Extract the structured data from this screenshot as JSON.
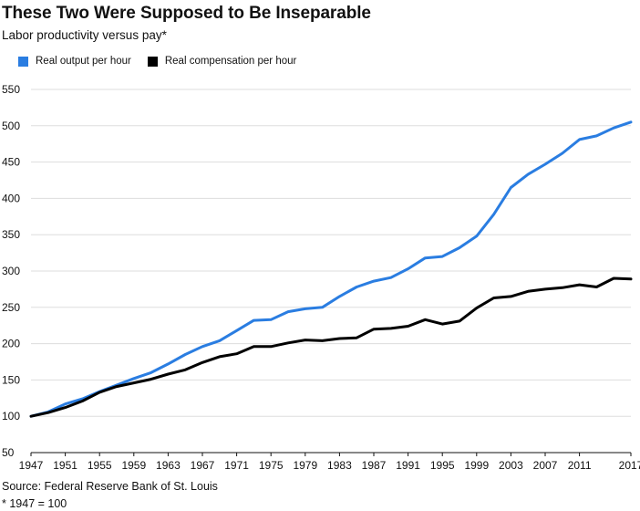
{
  "title": "These Two Were Supposed to Be Inseparable",
  "subtitle": "Labor productivity versus pay*",
  "source": "Source: Federal Reserve Bank of St. Louis",
  "footnote": "* 1947 = 100",
  "chart_data": {
    "type": "line",
    "title": "These Two Were Supposed to Be Inseparable",
    "subtitle": "Labor productivity versus pay*",
    "xlabel": "",
    "ylabel": "",
    "xlim": [
      1947,
      2017
    ],
    "ylim": [
      50,
      550
    ],
    "grid": true,
    "legend_position": "top-left",
    "x_ticks": [
      "1947",
      "1951",
      "1955",
      "1959",
      "1963",
      "1967",
      "1971",
      "1975",
      "1979",
      "1983",
      "1987",
      "1991",
      "1995",
      "1999",
      "2003",
      "2007",
      "2011",
      "2017"
    ],
    "y_ticks": [
      50,
      100,
      150,
      200,
      250,
      300,
      350,
      400,
      450,
      500,
      550
    ],
    "x": [
      1947,
      1949,
      1951,
      1953,
      1955,
      1957,
      1959,
      1961,
      1963,
      1965,
      1967,
      1969,
      1971,
      1973,
      1975,
      1977,
      1979,
      1981,
      1983,
      1985,
      1987,
      1989,
      1991,
      1993,
      1995,
      1997,
      1999,
      2001,
      2003,
      2005,
      2007,
      2009,
      2011,
      2013,
      2015,
      2017
    ],
    "series": [
      {
        "name": "Real output per hour",
        "color": "#2a7de1",
        "values": [
          100,
          106,
          117,
          124,
          134,
          143,
          152,
          160,
          172,
          185,
          196,
          204,
          218,
          232,
          233,
          244,
          248,
          250,
          265,
          278,
          286,
          291,
          303,
          318,
          320,
          332,
          348,
          378,
          415,
          433,
          447,
          462,
          481,
          486,
          497,
          505
        ]
      },
      {
        "name": "Real compensation per hour",
        "color": "#000000",
        "values": [
          100,
          105,
          112,
          121,
          133,
          141,
          146,
          151,
          158,
          164,
          174,
          182,
          186,
          196,
          196,
          201,
          205,
          204,
          207,
          208,
          220,
          221,
          224,
          233,
          227,
          231,
          249,
          263,
          265,
          272,
          275,
          277,
          281,
          278,
          290,
          289
        ]
      }
    ]
  }
}
